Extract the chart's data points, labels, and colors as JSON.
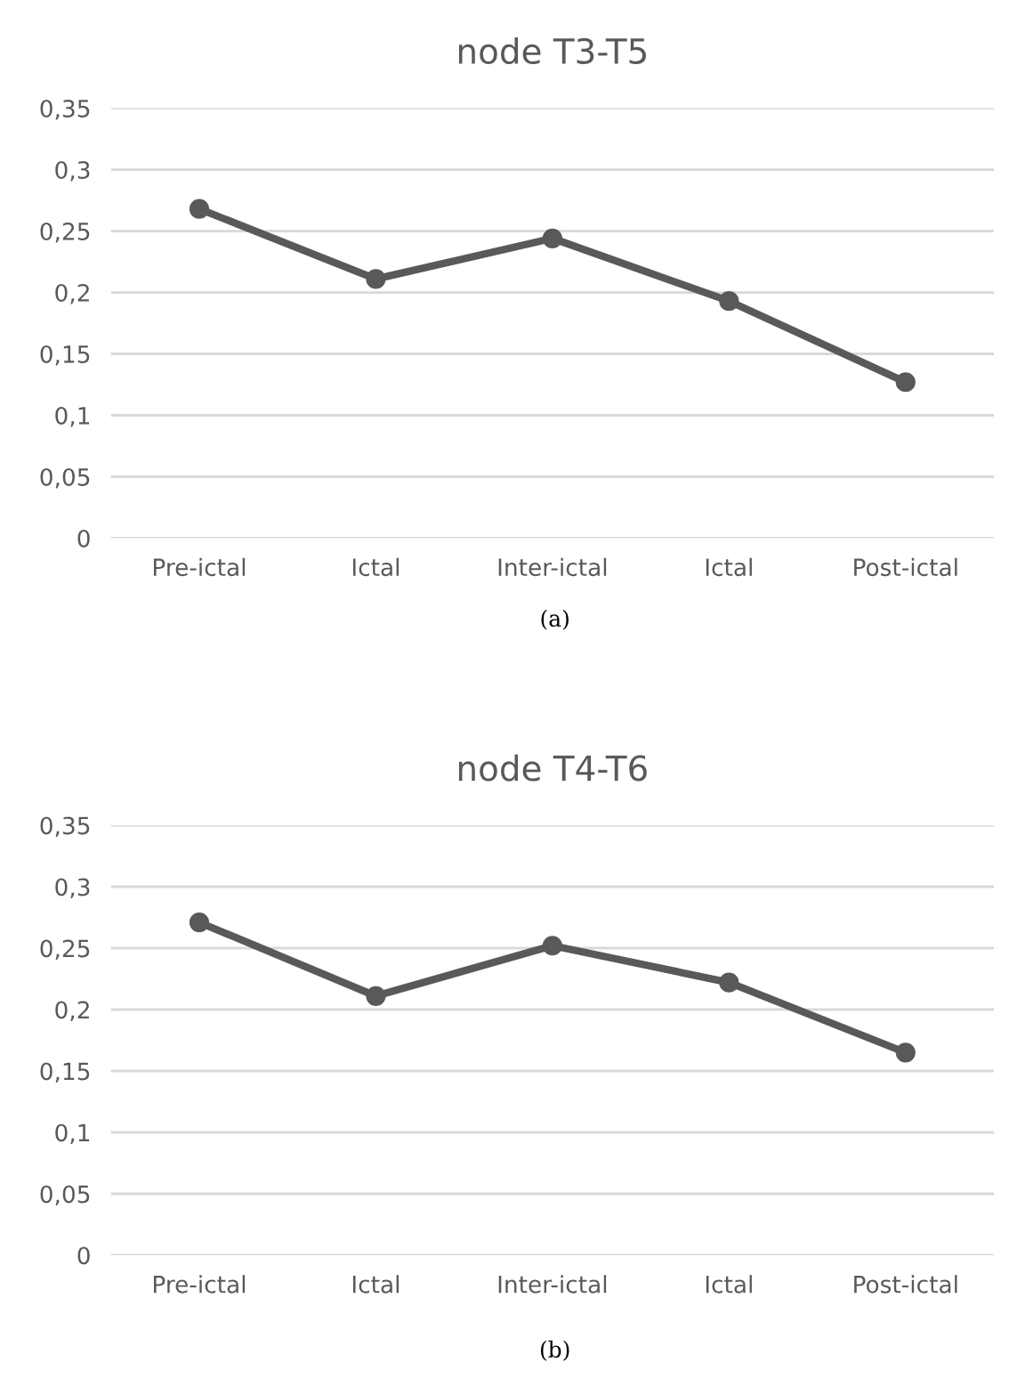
{
  "chart_data": [
    {
      "type": "line",
      "title": "node T3-T5",
      "categories": [
        "Pre-ictal",
        "Ictal",
        "Inter-ictal",
        "Ictal",
        "Post-ictal"
      ],
      "series": [
        {
          "color": "#595959",
          "values": [
            0.268,
            0.211,
            0.244,
            0.193,
            0.127
          ]
        }
      ],
      "ylim": [
        0,
        0.35
      ],
      "yticks": [
        0,
        {
          "value": 0.05,
          "label": "0,05"
        },
        {
          "value": 0.1,
          "label": "0,1"
        },
        {
          "value": 0.15,
          "label": "0,15"
        },
        {
          "value": 0.2,
          "label": "0,2"
        },
        {
          "value": 0.25,
          "label": "0,25"
        },
        {
          "value": 0.3,
          "label": "0,3"
        },
        {
          "value": 0.35,
          "label": "0,35"
        }
      ],
      "grid": "y",
      "marker": "circle",
      "line_style": "solid",
      "annotations": [
        "(a)"
      ]
    },
    {
      "type": "line",
      "title": "node T4-T6",
      "categories": [
        "Pre-ictal",
        "Ictal",
        "Inter-ictal",
        "Ictal",
        "Post-ictal"
      ],
      "series": [
        {
          "color": "#595959",
          "values": [
            0.271,
            0.211,
            0.252,
            0.222,
            0.165
          ]
        }
      ],
      "ylim": [
        0,
        0.35
      ],
      "yticks": [
        0,
        {
          "value": 0.05,
          "label": "0,05"
        },
        {
          "value": 0.1,
          "label": "0,1"
        },
        {
          "value": 0.15,
          "label": "0,15"
        },
        {
          "value": 0.2,
          "label": "0,2"
        },
        {
          "value": 0.25,
          "label": "0,25"
        },
        {
          "value": 0.3,
          "label": "0,3"
        },
        {
          "value": 0.35,
          "label": "0,35"
        }
      ],
      "grid": "y",
      "marker": "circle",
      "line_style": "solid",
      "annotations": [
        "(b)"
      ]
    }
  ]
}
